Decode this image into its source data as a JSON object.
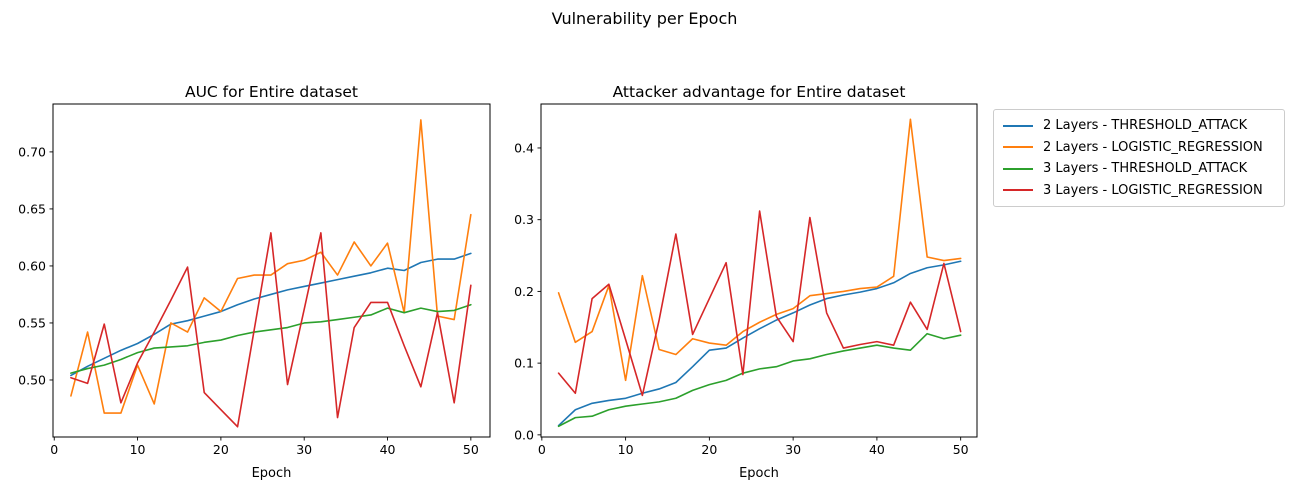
{
  "figure": {
    "suptitle": "Vulnerability per Epoch",
    "background": "#ffffff",
    "axis_color": "#000000"
  },
  "legend": {
    "position": "upper-right-outside",
    "entries": [
      {
        "label": "2 Layers - THRESHOLD_ATTACK",
        "color": "#1f77b4"
      },
      {
        "label": "2 Layers - LOGISTIC_REGRESSION",
        "color": "#ff7f0e"
      },
      {
        "label": "3 Layers - THRESHOLD_ATTACK",
        "color": "#2ca02c"
      },
      {
        "label": "3 Layers - LOGISTIC_REGRESSION",
        "color": "#d62728"
      }
    ]
  },
  "chart_data": [
    {
      "type": "line",
      "title": "AUC for Entire dataset",
      "xlabel": "Epoch",
      "ylabel": "",
      "grid": false,
      "xlim": [
        -0.15,
        52.3
      ],
      "ylim": [
        0.45,
        0.742
      ],
      "xticks": [
        0,
        10,
        20,
        30,
        40,
        50
      ],
      "xtick_labels": [
        "0",
        "10",
        "20",
        "30",
        "40",
        "50"
      ],
      "yticks": [
        0.5,
        0.55,
        0.6,
        0.65,
        0.7
      ],
      "ytick_labels": [
        "0.50",
        "0.55",
        "0.60",
        "0.65",
        "0.70"
      ],
      "x": [
        2,
        4,
        6,
        8,
        10,
        12,
        14,
        16,
        18,
        20,
        22,
        24,
        26,
        28,
        30,
        32,
        34,
        36,
        38,
        40,
        42,
        44,
        46,
        48,
        50
      ],
      "series": [
        {
          "name": "2 Layers - THRESHOLD_ATTACK",
          "color": "#1f77b4",
          "values": [
            0.504,
            0.512,
            0.519,
            0.526,
            0.532,
            0.54,
            0.549,
            0.552,
            0.556,
            0.56,
            0.566,
            0.571,
            0.575,
            0.579,
            0.582,
            0.585,
            0.588,
            0.591,
            0.594,
            0.598,
            0.596,
            0.603,
            0.606,
            0.606,
            0.611
          ]
        },
        {
          "name": "2 Layers - LOGISTIC_REGRESSION",
          "color": "#ff7f0e",
          "values": [
            0.486,
            0.542,
            0.471,
            0.471,
            0.513,
            0.479,
            0.55,
            0.542,
            0.572,
            0.56,
            0.589,
            0.592,
            0.592,
            0.602,
            0.605,
            0.612,
            0.592,
            0.621,
            0.6,
            0.62,
            0.559,
            0.728,
            0.556,
            0.553,
            0.645
          ]
        },
        {
          "name": "3 Layers - THRESHOLD_ATTACK",
          "color": "#2ca02c",
          "values": [
            0.506,
            0.51,
            0.513,
            0.518,
            0.524,
            0.528,
            0.529,
            0.53,
            0.533,
            0.535,
            0.539,
            0.542,
            0.544,
            0.546,
            0.55,
            0.551,
            0.553,
            0.555,
            0.557,
            0.563,
            0.559,
            0.563,
            0.56,
            0.561,
            0.566
          ]
        },
        {
          "name": "3 Layers - LOGISTIC_REGRESSION",
          "color": "#d62728",
          "values": [
            0.502,
            0.497,
            0.549,
            0.48,
            0.515,
            0.542,
            0.57,
            0.599,
            0.489,
            0.474,
            0.459,
            0.544,
            0.629,
            0.496,
            0.562,
            0.629,
            0.467,
            0.546,
            0.568,
            0.568,
            0.53,
            0.494,
            0.559,
            0.48,
            0.583
          ]
        }
      ]
    },
    {
      "type": "line",
      "title": "Attacker advantage for Entire dataset",
      "xlabel": "Epoch",
      "ylabel": "",
      "grid": false,
      "xlim": [
        -0.1,
        51.95
      ],
      "ylim": [
        -0.003,
        0.4613
      ],
      "xticks": [
        0,
        10,
        20,
        30,
        40,
        50
      ],
      "xtick_labels": [
        "0",
        "10",
        "20",
        "30",
        "40",
        "50"
      ],
      "yticks": [
        0.0,
        0.1,
        0.2,
        0.3,
        0.4
      ],
      "ytick_labels": [
        "0.0",
        "0.1",
        "0.2",
        "0.3",
        "0.4"
      ],
      "x": [
        2,
        4,
        6,
        8,
        10,
        12,
        14,
        16,
        18,
        20,
        22,
        24,
        26,
        28,
        30,
        32,
        34,
        36,
        38,
        40,
        42,
        44,
        46,
        48,
        50
      ],
      "series": [
        {
          "name": "2 Layers - THRESHOLD_ATTACK",
          "color": "#1f77b4",
          "values": [
            0.013,
            0.035,
            0.044,
            0.048,
            0.051,
            0.058,
            0.064,
            0.073,
            0.095,
            0.118,
            0.121,
            0.135,
            0.148,
            0.16,
            0.17,
            0.181,
            0.19,
            0.195,
            0.199,
            0.204,
            0.212,
            0.225,
            0.233,
            0.237,
            0.242
          ]
        },
        {
          "name": "2 Layers - LOGISTIC_REGRESSION",
          "color": "#ff7f0e",
          "values": [
            0.198,
            0.129,
            0.144,
            0.208,
            0.076,
            0.222,
            0.119,
            0.112,
            0.134,
            0.128,
            0.125,
            0.144,
            0.157,
            0.168,
            0.176,
            0.194,
            0.197,
            0.2,
            0.204,
            0.206,
            0.221,
            0.44,
            0.248,
            0.243,
            0.246
          ]
        },
        {
          "name": "3 Layers - THRESHOLD_ATTACK",
          "color": "#2ca02c",
          "values": [
            0.012,
            0.024,
            0.026,
            0.035,
            0.04,
            0.043,
            0.046,
            0.051,
            0.062,
            0.07,
            0.076,
            0.086,
            0.092,
            0.095,
            0.103,
            0.106,
            0.112,
            0.117,
            0.121,
            0.125,
            0.121,
            0.118,
            0.141,
            0.134,
            0.139
          ]
        },
        {
          "name": "3 Layers - LOGISTIC_REGRESSION",
          "color": "#d62728",
          "values": [
            0.086,
            0.058,
            0.19,
            0.21,
            0.133,
            0.055,
            0.16,
            0.28,
            0.14,
            0.19,
            0.24,
            0.084,
            0.312,
            0.165,
            0.13,
            0.303,
            0.17,
            0.121,
            0.126,
            0.13,
            0.125,
            0.185,
            0.147,
            0.239,
            0.144
          ]
        }
      ]
    }
  ]
}
